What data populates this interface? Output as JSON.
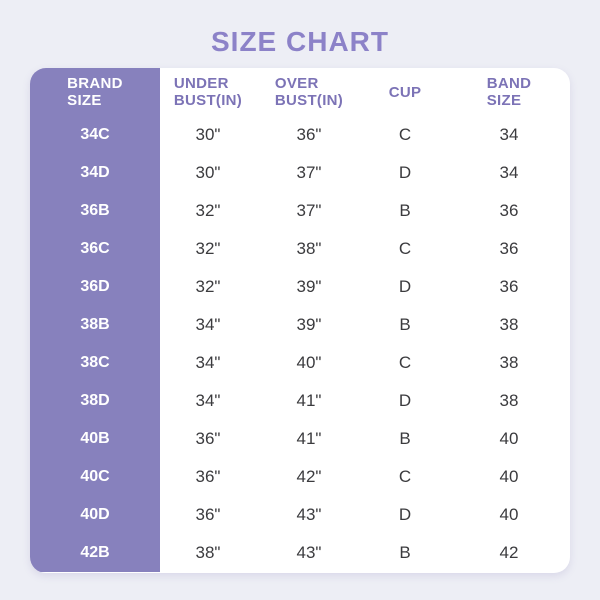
{
  "title": "SIZE CHART",
  "colors": {
    "page_bg": "#EDEEF5",
    "table_bg": "#FFFFFF",
    "brand_panel_bg": "#8781BD",
    "brand_text": "#FFFFFF",
    "title_text": "#8C82C8",
    "header_text": "#7C73B6",
    "cell_text": "#3B3B3E"
  },
  "chart_data": {
    "type": "table",
    "title": "SIZE CHART",
    "columns": [
      "BRAND SIZE",
      "UNDER BUST(IN)",
      "OVER BUST(IN)",
      "CUP",
      "BAND SIZE"
    ],
    "header": {
      "brand": [
        "BRAND",
        "SIZE"
      ],
      "under": [
        "UNDER",
        "BUST(IN)"
      ],
      "over": [
        "OVER",
        "BUST(IN)"
      ],
      "cup": [
        "CUP"
      ],
      "band": [
        "BAND",
        "SIZE"
      ]
    },
    "rows": [
      {
        "brand": "34C",
        "under": "30\"",
        "over": "36\"",
        "cup": "C",
        "band": "34"
      },
      {
        "brand": "34D",
        "under": "30\"",
        "over": "37\"",
        "cup": "D",
        "band": "34"
      },
      {
        "brand": "36B",
        "under": "32\"",
        "over": "37\"",
        "cup": "B",
        "band": "36"
      },
      {
        "brand": "36C",
        "under": "32\"",
        "over": "38\"",
        "cup": "C",
        "band": "36"
      },
      {
        "brand": "36D",
        "under": "32\"",
        "over": "39\"",
        "cup": "D",
        "band": "36"
      },
      {
        "brand": "38B",
        "under": "34\"",
        "over": "39\"",
        "cup": "B",
        "band": "38"
      },
      {
        "brand": "38C",
        "under": "34\"",
        "over": "40\"",
        "cup": "C",
        "band": "38"
      },
      {
        "brand": "38D",
        "under": "34\"",
        "over": "41\"",
        "cup": "D",
        "band": "38"
      },
      {
        "brand": "40B",
        "under": "36\"",
        "over": "41\"",
        "cup": "B",
        "band": "40"
      },
      {
        "brand": "40C",
        "under": "36\"",
        "over": "42\"",
        "cup": "C",
        "band": "40"
      },
      {
        "brand": "40D",
        "under": "36\"",
        "over": "43\"",
        "cup": "D",
        "band": "40"
      },
      {
        "brand": "42B",
        "under": "38\"",
        "over": "43\"",
        "cup": "B",
        "band": "42"
      }
    ]
  }
}
